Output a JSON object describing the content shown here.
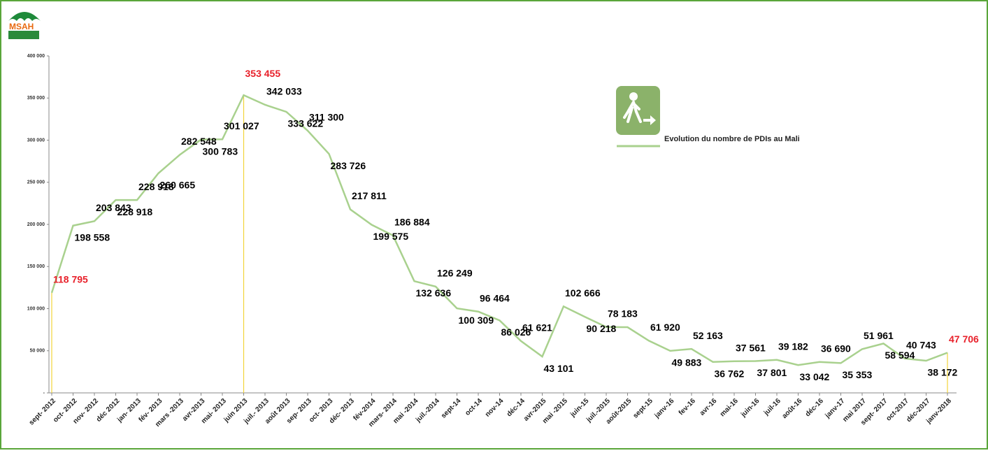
{
  "logo": "MSAH",
  "chart_data": {
    "type": "line",
    "categories": [
      "sept- 2012",
      "oct- 2012",
      "nov- 2012",
      "déc 2012",
      "jan- 2013",
      "fév- 2013",
      "mars -2013",
      "avr-2013",
      "mai- 2013",
      "juin 2013",
      "juil.- 2013",
      "août 2013",
      "sep- 2013",
      "oct- 2013",
      "déc- 2013",
      "fév-2014",
      "mars- 2014",
      "mai -2014",
      "juil.-2014",
      "sept-14",
      "oct-14",
      "nov-14",
      "déc-14",
      "avr-2015",
      "mai -2015",
      "juin-15",
      "juil.-2015",
      "août-2015",
      "sept-15",
      "janv-16",
      "fev-16",
      "avr-16",
      "mai-16",
      "juin-16",
      "juil-16",
      "août-16",
      "déc-16",
      "janv-17",
      "mai 2017",
      "sept- 2017",
      "oct-2017",
      "déc-2017",
      "janv-2018"
    ],
    "series": [
      {
        "name": "Evolution du nombre de PDIs au Mali",
        "color": "#a9d18e",
        "values": [
          118795,
          198558,
          203843,
          228918,
          228918,
          260665,
          282548,
          300783,
          301027,
          353455,
          342033,
          333622,
          311300,
          283726,
          217811,
          199575,
          186884,
          132636,
          126249,
          100309,
          96464,
          86026,
          61621,
          43101,
          102666,
          90218,
          78183,
          78000,
          61920,
          49883,
          52163,
          36762,
          37561,
          37801,
          39182,
          33042,
          36690,
          35353,
          51961,
          58594,
          40743,
          38172,
          47706
        ],
        "value_labels": [
          "118 795",
          "198 558",
          "203 843",
          "228 918",
          "228 918",
          "260 665",
          "282 548",
          "300 783",
          "301 027",
          "353 455",
          "342 033",
          "333 622",
          "311 300",
          "283 726",
          "217 811",
          "199 575",
          "186 884",
          "132 636",
          "126 249",
          "100 309",
          "96 464",
          "86 026",
          "61 621",
          "43 101",
          "102 666",
          "90 218",
          "78 183",
          null,
          "61 920",
          "49 883",
          "52 163",
          "36 762",
          "37 561",
          "37 801",
          "39 182",
          "33 042",
          "36 690",
          "35 353",
          "51 961",
          "58 594",
          "40 743",
          "38 172",
          "47 706"
        ]
      }
    ],
    "ylim": [
      0,
      400000
    ],
    "yticks": [
      {
        "value": 0,
        "label": "-"
      },
      {
        "value": 50000,
        "label": "50 000"
      },
      {
        "value": 100000,
        "label": "100 000"
      },
      {
        "value": 150000,
        "label": "150 000"
      },
      {
        "value": 200000,
        "label": "200 000"
      },
      {
        "value": 250000,
        "label": "250 000"
      },
      {
        "value": 300000,
        "label": "300 000"
      },
      {
        "value": 350000,
        "label": "350 000"
      },
      {
        "value": 400000,
        "label": "400 000"
      }
    ],
    "label_color": "#000000",
    "highlight_color": "#e8202a",
    "marker_line_color": "#f2d43a",
    "legend": "upper right"
  }
}
